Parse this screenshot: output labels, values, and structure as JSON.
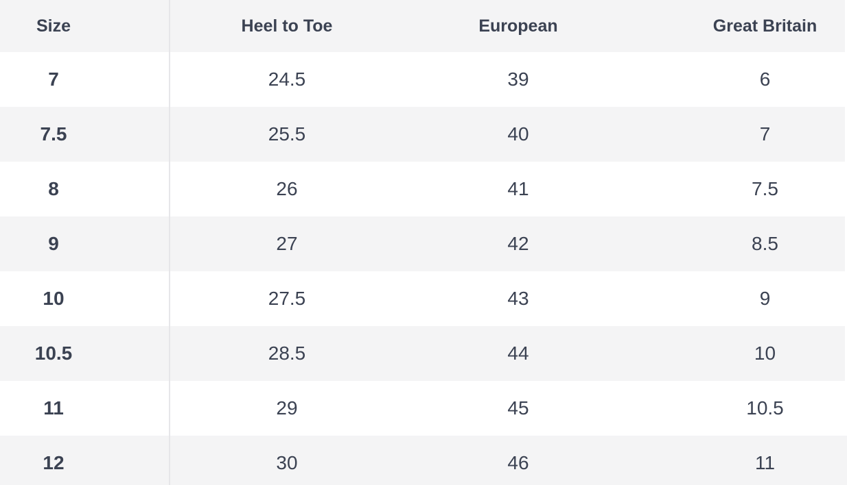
{
  "colors": {
    "stripe": "#f4f4f5",
    "divider": "#e6e6e9",
    "text": "#3b4252",
    "row_white": "#ffffff"
  },
  "chart_data": {
    "type": "table",
    "columns": [
      "Size",
      "Heel to Toe",
      "European",
      "Great Britain"
    ],
    "rows": [
      [
        "7",
        "24.5",
        "39",
        "6"
      ],
      [
        "7.5",
        "25.5",
        "40",
        "7"
      ],
      [
        "8",
        "26",
        "41",
        "7.5"
      ],
      [
        "9",
        "27",
        "42",
        "8.5"
      ],
      [
        "10",
        "27.5",
        "43",
        "9"
      ],
      [
        "10.5",
        "28.5",
        "44",
        "10"
      ],
      [
        "11",
        "29",
        "45",
        "10.5"
      ],
      [
        "12",
        "30",
        "46",
        "11"
      ]
    ],
    "layout": {
      "header_background": "#f4f4f5",
      "zebra_striping": true,
      "first_column_bold": true
    }
  }
}
